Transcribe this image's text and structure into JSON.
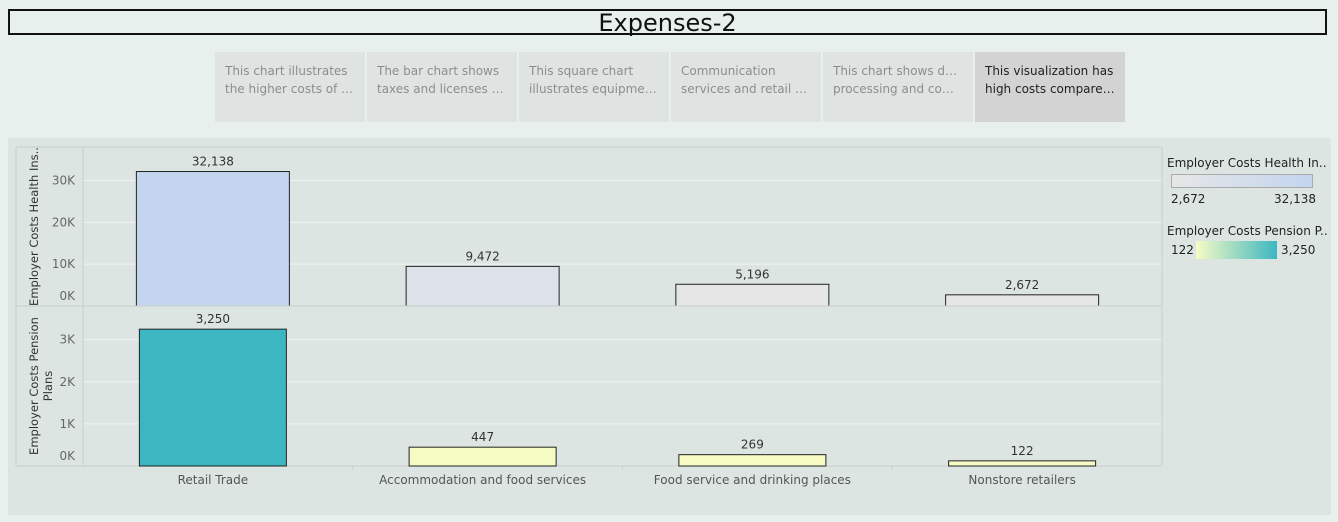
{
  "title": "Expenses-2",
  "tabs": [
    {
      "line1": "This chart illustrates",
      "line2": "the higher costs of m..",
      "active": false
    },
    {
      "line1": "The bar chart shows",
      "line2": "taxes and licenses ba..",
      "active": false
    },
    {
      "line1": "This square chart",
      "line2": "illustrates equipment..",
      "active": false
    },
    {
      "line1": "Communication",
      "line2": "services and retail tra..",
      "active": false
    },
    {
      "line1": "This chart shows data",
      "line2": "processing and comp..",
      "active": false
    },
    {
      "line1": "This visualization has",
      "line2": "high costs compared ..",
      "active": true
    }
  ],
  "legend": {
    "health": {
      "title": "Employer Costs Health In..",
      "min_label": "2,672",
      "max_label": "32,138",
      "color_min": "#e6e6e6",
      "color_max": "#c3d5ef"
    },
    "pension": {
      "title": "Employer Costs Pension P..",
      "min_label": "122",
      "max_label": "3,250",
      "color_min": "#f7fbc4",
      "color_max": "#3cb7c2"
    }
  },
  "chart_data": {
    "type": "bar",
    "categories": [
      "Retail Trade",
      "Accommodation and food services",
      "Food service and drinking places",
      "Nonstore retailers"
    ],
    "series": [
      {
        "name": "Employer Costs Health Ins..",
        "values": [
          32138,
          9472,
          5196,
          2672
        ],
        "labels": [
          "32,138",
          "9,472",
          "5,196",
          "2,672"
        ],
        "ylabel": "Employer Costs Health Ins..",
        "ylim": [
          0,
          38000
        ],
        "ticks": [
          0,
          10000,
          20000,
          30000
        ],
        "tick_labels": [
          "0K",
          "10K",
          "20K",
          "30K"
        ],
        "colors": [
          "#c3d5ef",
          "#dde2ea",
          "#e6e6e6",
          "#e6e6e6"
        ]
      },
      {
        "name": "Employer Costs Pension Plans",
        "values": [
          3250,
          447,
          269,
          122
        ],
        "labels": [
          "3,250",
          "447",
          "269",
          "122"
        ],
        "ylabel": "Employer Costs Pension Plans",
        "ylabel_lines": [
          "Employer Costs Pension",
          "Plans"
        ],
        "ylim": [
          0,
          3800
        ],
        "ticks": [
          0,
          1000,
          2000,
          3000
        ],
        "tick_labels": [
          "0K",
          "1K",
          "2K",
          "3K"
        ],
        "colors": [
          "#3cb7c2",
          "#f6fbc3",
          "#f7fbc4",
          "#f7fbc4"
        ]
      }
    ]
  }
}
